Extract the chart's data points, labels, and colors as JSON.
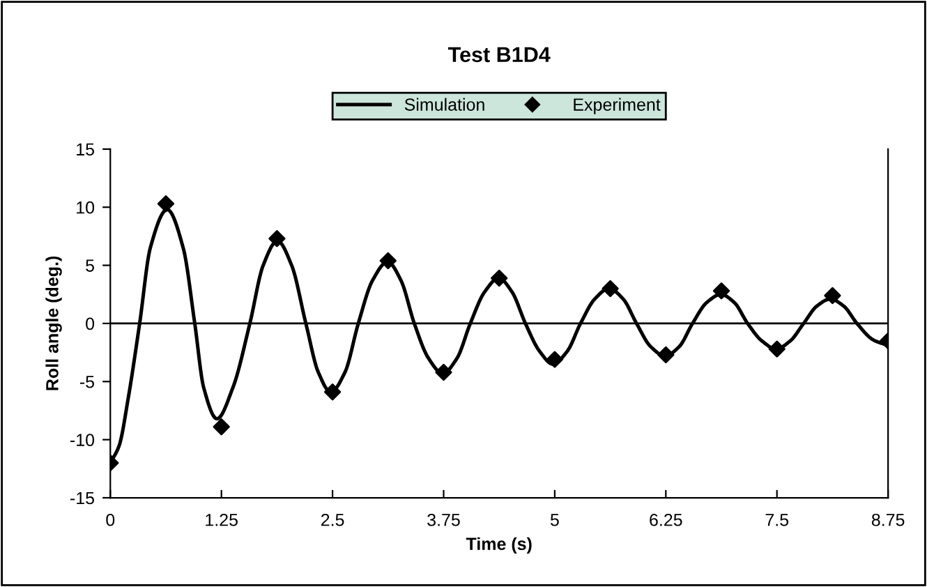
{
  "chart_data": {
    "type": "line",
    "title": "Test B1D4",
    "xlabel": "Time (s)",
    "ylabel": "Roll angle (deg.)",
    "xlim": [
      0,
      8.75
    ],
    "ylim": [
      -15,
      15
    ],
    "xticks": [
      0,
      1.25,
      2.5,
      3.75,
      5,
      6.25,
      7.5,
      8.75
    ],
    "yticks": [
      -15,
      -10,
      -5,
      0,
      5,
      10,
      15
    ],
    "grid": false,
    "legend": "top",
    "ref_lines": [
      {
        "axis": "y",
        "value": 0,
        "label": null,
        "color": "#000000"
      }
    ],
    "series": [
      {
        "name": "Simulation",
        "color": "#000000",
        "marker": "none",
        "line_style": "solid",
        "x": [
          0,
          0.1,
          0.2,
          0.33,
          0.45,
          0.64,
          0.82,
          0.95,
          1.05,
          1.2,
          1.38,
          1.57,
          1.72,
          1.88,
          2.04,
          2.2,
          2.34,
          2.48,
          2.64,
          2.79,
          2.95,
          3.12,
          3.27,
          3.42,
          3.58,
          3.74,
          3.9,
          4.05,
          4.21,
          4.37,
          4.52,
          4.67,
          4.83,
          4.98,
          5.14,
          5.29,
          5.45,
          5.61,
          5.77,
          5.92,
          6.08,
          6.24,
          6.4,
          6.55,
          6.71,
          6.87,
          7.02,
          7.17,
          7.33,
          7.49,
          7.65,
          7.8,
          7.95,
          8.1,
          8.25,
          8.4,
          8.58,
          8.75
        ],
        "values": [
          -12,
          -10.5,
          -6.5,
          0,
          6.5,
          9.8,
          6.5,
          0,
          -5.5,
          -8.2,
          -5.5,
          0,
          5,
          7.1,
          5,
          0,
          -4.2,
          -5.9,
          -4.2,
          0,
          3.7,
          5.3,
          3.7,
          0,
          -3,
          -4.3,
          -3,
          0,
          2.7,
          3.9,
          2.7,
          0,
          -2.4,
          -3.5,
          -2.4,
          0,
          2.1,
          3.0,
          2.1,
          0,
          -2,
          -2.8,
          -2,
          0,
          1.8,
          2.5,
          1.8,
          0,
          -1.5,
          -2.2,
          -1.5,
          0,
          1.5,
          2.1,
          1.5,
          0,
          -1.4,
          -1.9
        ]
      },
      {
        "name": "Experiment",
        "type": "scatter",
        "color": "#000000",
        "marker": "diamond",
        "x": [
          0,
          0.625,
          1.25,
          1.875,
          2.5,
          3.125,
          3.75,
          4.375,
          5,
          5.625,
          6.25,
          6.875,
          7.5,
          8.125,
          8.75
        ],
        "values": [
          -12,
          10.3,
          -8.9,
          7.3,
          -5.9,
          5.4,
          -4.2,
          3.9,
          -3.1,
          3.0,
          -2.7,
          2.8,
          -2.2,
          2.4,
          -1.5
        ]
      }
    ]
  }
}
